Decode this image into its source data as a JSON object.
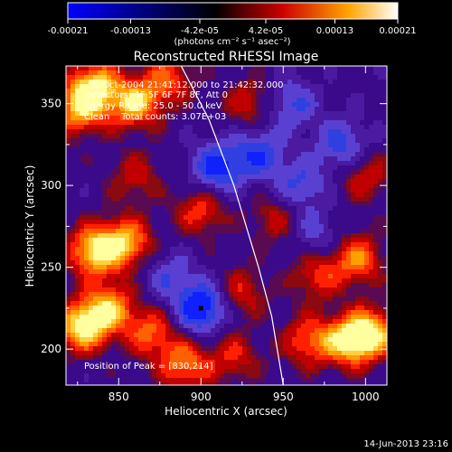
{
  "colorbar": {
    "ticks": [
      "-0.00021",
      "-0.00013",
      "-4.2e-05",
      "4.2e-05",
      "0.00013",
      "0.00021"
    ],
    "tick_values": [
      -0.00021,
      -0.00013,
      -4.2e-05,
      4.2e-05,
      0.00013,
      0.00021
    ],
    "range": [
      -0.00021,
      0.00021
    ],
    "units": "(photons cm⁻² s⁻¹ asec⁻²)",
    "stops": [
      "#0000ff",
      "#000000",
      "#7f0000",
      "#ff0000",
      "#ffa500",
      "#ffffff"
    ]
  },
  "chart_data": {
    "type": "heatmap",
    "title": "Reconstructed RHESSI Image",
    "xlabel": "Heliocentric X (arcsec)",
    "ylabel": "Heliocentric Y (arcsec)",
    "xlim": [
      818,
      1013
    ],
    "ylim": [
      178,
      373
    ],
    "xticks": [
      850,
      900,
      950,
      1000
    ],
    "yticks": [
      200,
      250,
      300,
      350
    ],
    "annotations": [
      "8-Oct-2004 21:41:12.000 to 21:42:32.000",
      "Detectors: 4F 5F 6F 7F 8F, Att 0",
      "Energy Range: 25.0 - 50.0 keV",
      "Clean    Total counts: 3.07E+03"
    ],
    "peak_label": "Position of Peak = [830,214]",
    "peak": [
      830,
      214
    ],
    "hot_spots": [
      {
        "x": 835,
        "y": 360,
        "v": 0.95
      },
      {
        "x": 825,
        "y": 345,
        "v": 0.7
      },
      {
        "x": 860,
        "y": 350,
        "v": 0.85
      },
      {
        "x": 880,
        "y": 365,
        "v": 0.55
      },
      {
        "x": 835,
        "y": 260,
        "v": 0.95
      },
      {
        "x": 855,
        "y": 265,
        "v": 0.8
      },
      {
        "x": 828,
        "y": 214,
        "v": 1.0
      },
      {
        "x": 845,
        "y": 225,
        "v": 0.75
      },
      {
        "x": 870,
        "y": 210,
        "v": 0.6
      },
      {
        "x": 890,
        "y": 190,
        "v": 0.7
      },
      {
        "x": 920,
        "y": 195,
        "v": 0.45
      },
      {
        "x": 990,
        "y": 205,
        "v": 0.9
      },
      {
        "x": 1005,
        "y": 210,
        "v": 0.8
      },
      {
        "x": 965,
        "y": 205,
        "v": 0.6
      },
      {
        "x": 995,
        "y": 255,
        "v": 0.7
      },
      {
        "x": 970,
        "y": 245,
        "v": 0.5
      },
      {
        "x": 1000,
        "y": 305,
        "v": 0.45
      },
      {
        "x": 930,
        "y": 350,
        "v": 0.45
      },
      {
        "x": 900,
        "y": 285,
        "v": 0.55
      },
      {
        "x": 945,
        "y": 280,
        "v": 0.4
      },
      {
        "x": 925,
        "y": 235,
        "v": 0.45
      },
      {
        "x": 860,
        "y": 305,
        "v": 0.4
      }
    ],
    "cold_spots": [
      {
        "x": 900,
        "y": 225,
        "v": -0.9
      },
      {
        "x": 910,
        "y": 310,
        "v": -0.75
      },
      {
        "x": 935,
        "y": 320,
        "v": -0.6
      },
      {
        "x": 960,
        "y": 300,
        "v": -0.5
      },
      {
        "x": 985,
        "y": 325,
        "v": -0.55
      },
      {
        "x": 955,
        "y": 350,
        "v": -0.5
      },
      {
        "x": 880,
        "y": 245,
        "v": -0.4
      },
      {
        "x": 970,
        "y": 270,
        "v": -0.35
      }
    ],
    "limb_curve": [
      [
        888,
        373
      ],
      [
        905,
        340
      ],
      [
        920,
        300
      ],
      [
        935,
        250
      ],
      [
        943,
        220
      ],
      [
        950,
        178
      ]
    ]
  },
  "timestamp": "14-Jun-2013 23:16"
}
